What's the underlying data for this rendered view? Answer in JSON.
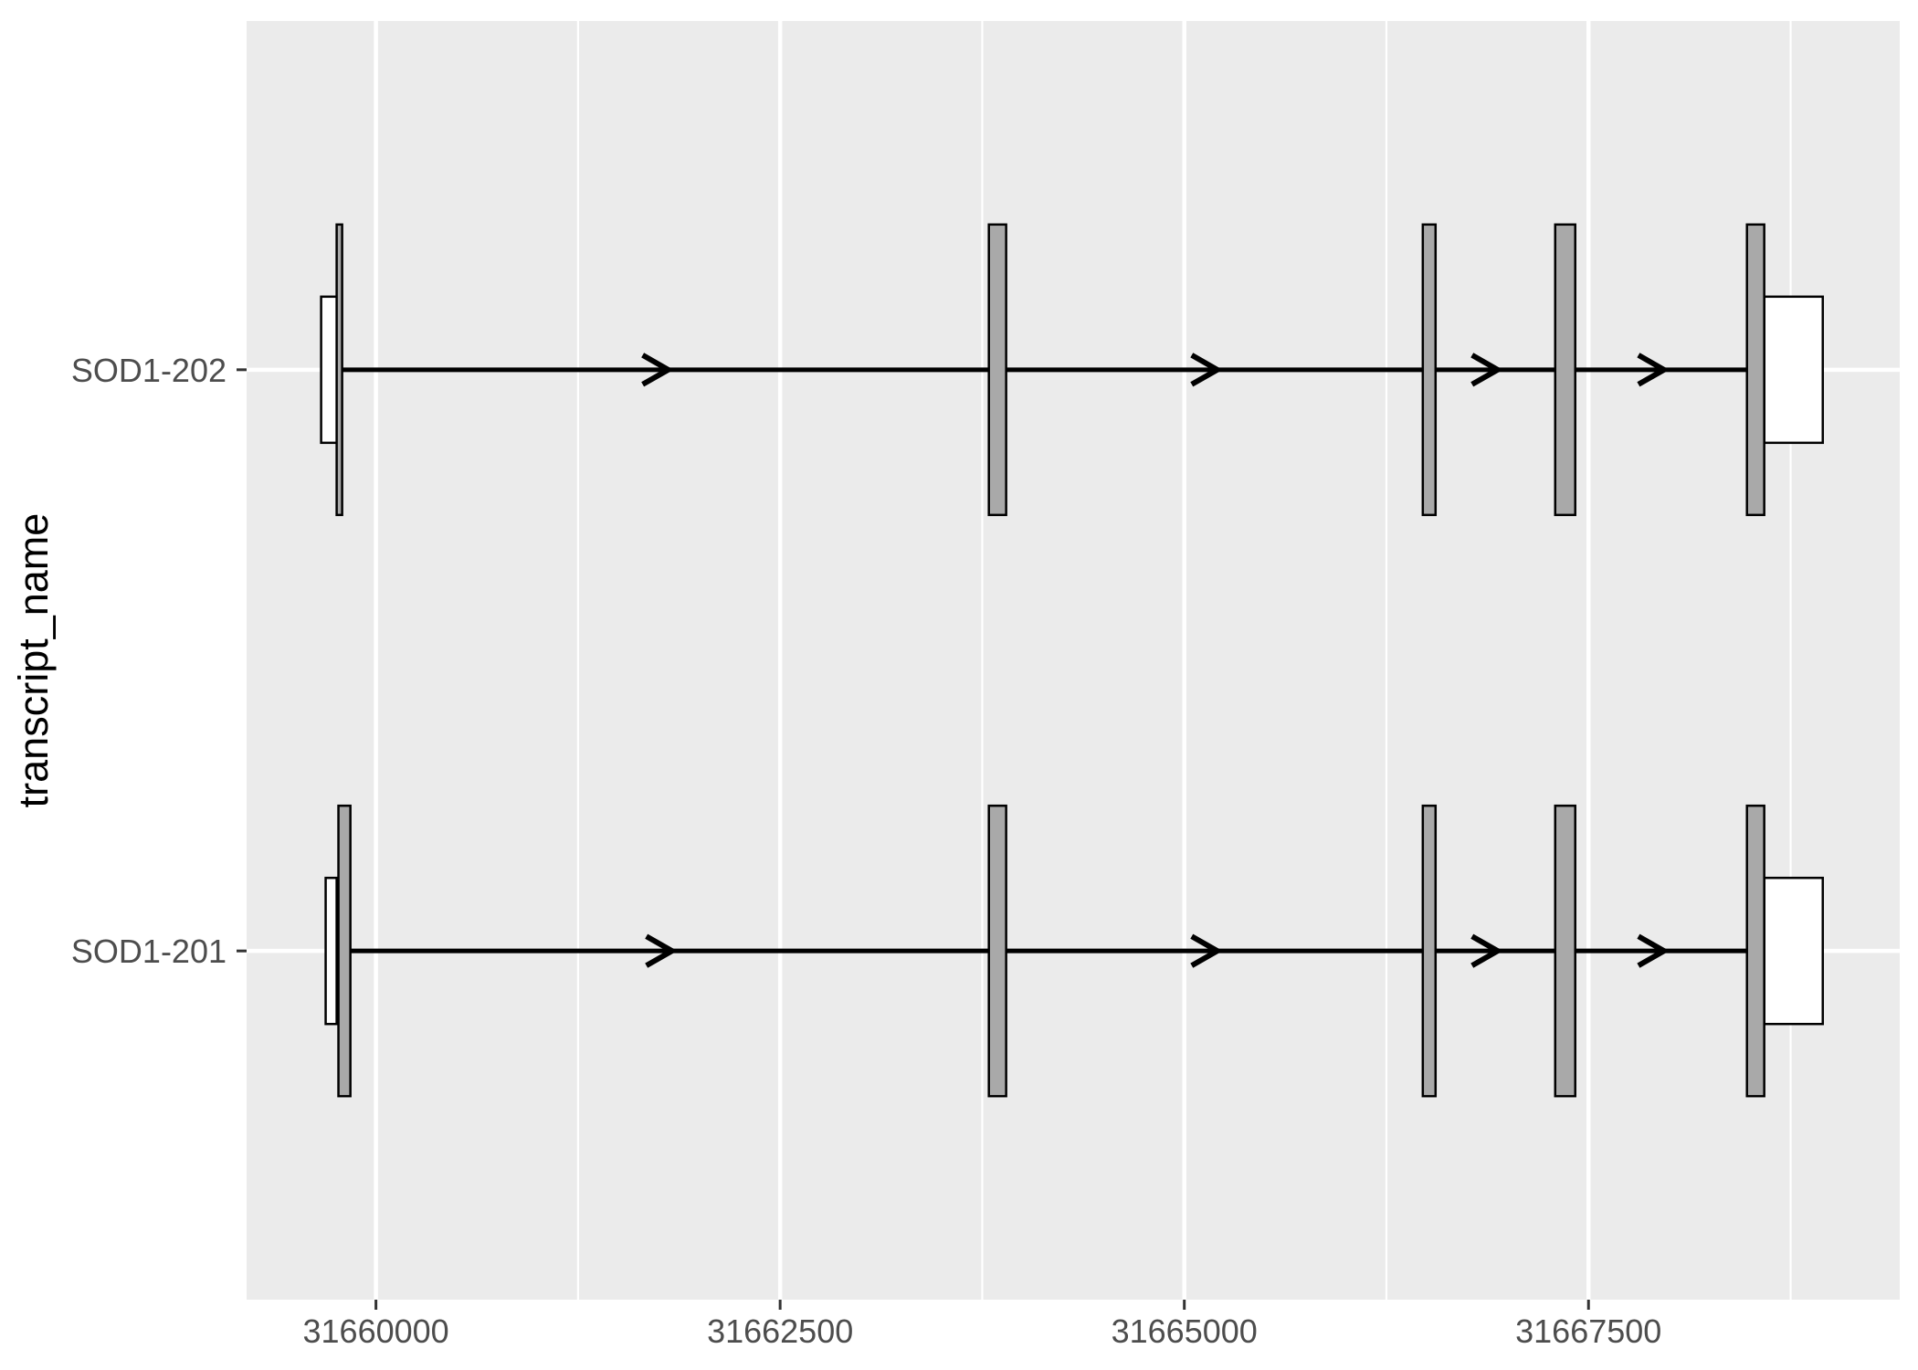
{
  "chart_data": {
    "type": "gene_model",
    "title": "",
    "xlabel": "",
    "ylabel": "transcript_name",
    "legend": "none",
    "panel_background": "#EBEBEB",
    "grid": "on",
    "x_axis": {
      "domain": [
        31659200,
        31669425
      ],
      "major_ticks": [
        31660000,
        31662500,
        31665000,
        31667500
      ],
      "tick_labels": [
        "31660000",
        "31662500",
        "31665000",
        "31667500"
      ],
      "minor_ticks": [
        31661250,
        31663750,
        31666250,
        31668750
      ]
    },
    "y_categories_top_to_bottom": [
      "SOD1-202",
      "SOD1-201"
    ],
    "transcripts": [
      {
        "name": "SOD1-202",
        "strand": "+",
        "exons": [
          [
            31659757,
            31659791
          ],
          [
            31663791,
            31663898
          ],
          [
            31666475,
            31666554
          ],
          [
            31667294,
            31667418
          ],
          [
            31668480,
            31668587
          ]
        ],
        "utrs": [
          [
            31659661,
            31659768
          ],
          [
            31668587,
            31668949
          ]
        ],
        "intron_arrow_positions": [
          31661791,
          31665187,
          31666921,
          31667950
        ]
      },
      {
        "name": "SOD1-201",
        "strand": "+",
        "exons": [
          [
            31659768,
            31659842
          ],
          [
            31663791,
            31663898
          ],
          [
            31666475,
            31666554
          ],
          [
            31667294,
            31667418
          ],
          [
            31668480,
            31668587
          ]
        ],
        "utrs": [
          [
            31659689,
            31659757
          ],
          [
            31668587,
            31668949
          ]
        ],
        "intron_arrow_positions": [
          31661814,
          31665187,
          31666921,
          31667950
        ]
      }
    ],
    "colors": {
      "panel_bg": "#EBEBEB",
      "gridline": "#FFFFFF",
      "exon_fill": "#A9A9A9",
      "utr_fill": "#FFFFFF",
      "outline": "#000000",
      "intron_line": "#000000",
      "axis_text": "#4D4D4D",
      "tick_mark": "#333333",
      "axis_title": "#000000"
    }
  }
}
